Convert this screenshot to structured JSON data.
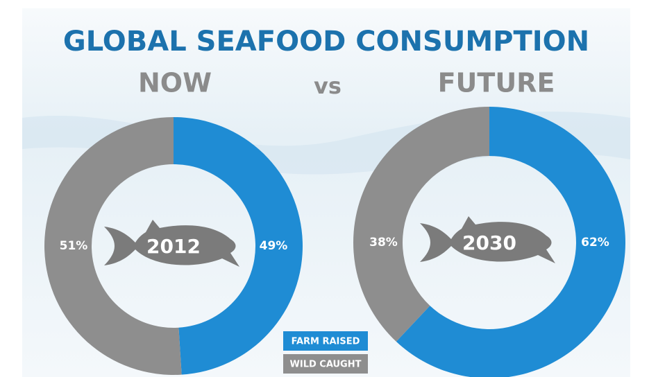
{
  "title": "GLOBAL SEAFOOD CONSUMPTION",
  "comparison": {
    "left": "NOW",
    "middle": "vs",
    "right": "FUTURE"
  },
  "chart_data": [
    {
      "type": "donut",
      "center_label": "2012",
      "categories": [
        "FARM RAISED",
        "WILD CAUGHT"
      ],
      "values": [
        49,
        51
      ],
      "value_labels": [
        "49%",
        "51%"
      ],
      "colors": [
        "#1f8cd4",
        "#8e8e8e"
      ]
    },
    {
      "type": "donut",
      "center_label": "2030",
      "categories": [
        "FARM RAISED",
        "WILD CAUGHT"
      ],
      "values": [
        62,
        38
      ],
      "value_labels": [
        "62%",
        "38%"
      ],
      "colors": [
        "#1f8cd4",
        "#8e8e8e"
      ]
    }
  ]
}
